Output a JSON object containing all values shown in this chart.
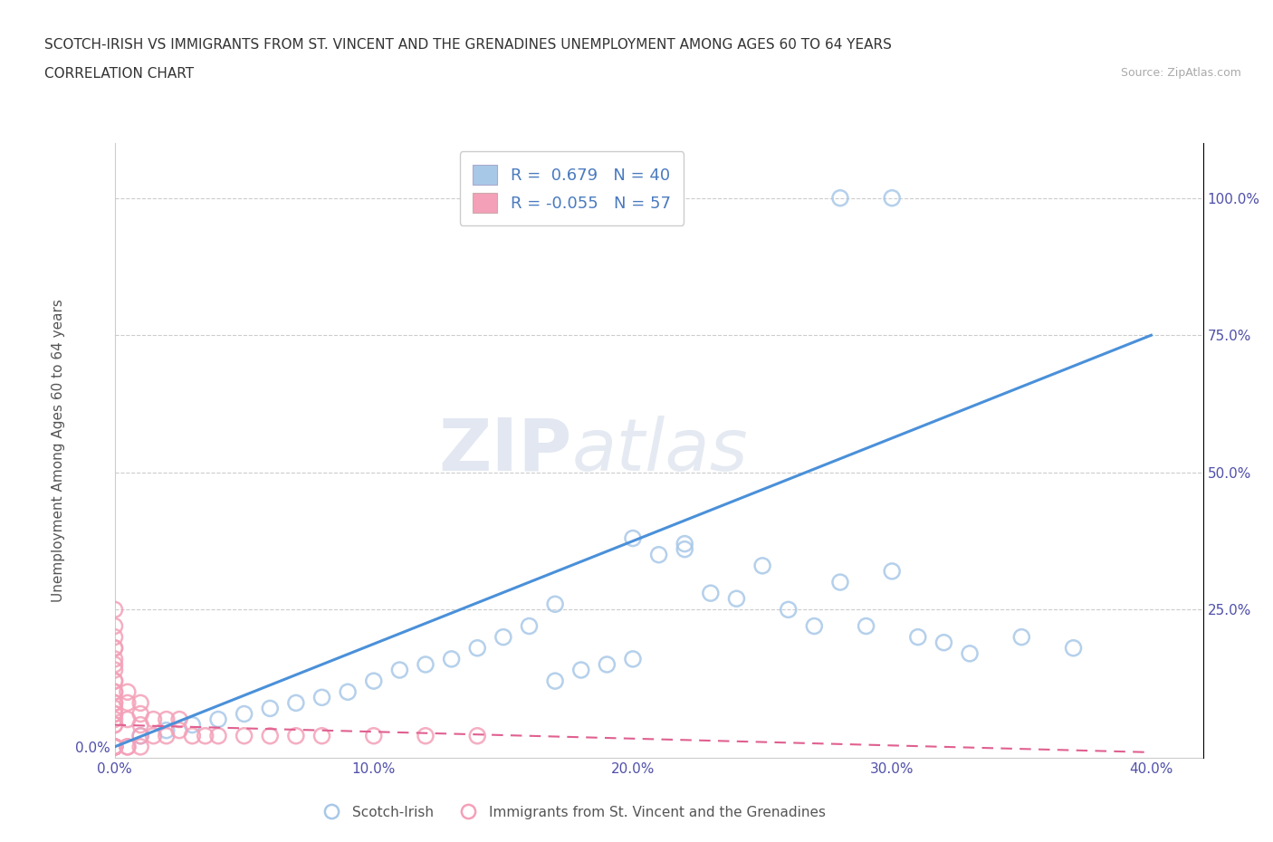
{
  "title_line1": "SCOTCH-IRISH VS IMMIGRANTS FROM ST. VINCENT AND THE GRENADINES UNEMPLOYMENT AMONG AGES 60 TO 64 YEARS",
  "title_line2": "CORRELATION CHART",
  "source_text": "Source: ZipAtlas.com",
  "ylabel": "Unemployment Among Ages 60 to 64 years",
  "xlim": [
    0.0,
    0.42
  ],
  "ylim": [
    -0.02,
    1.1
  ],
  "xtick_labels": [
    "0.0%",
    "10.0%",
    "20.0%",
    "30.0%",
    "40.0%"
  ],
  "xtick_vals": [
    0.0,
    0.1,
    0.2,
    0.3,
    0.4
  ],
  "ytick_labels_left": [
    "0.0%"
  ],
  "ytick_vals_left": [
    0.0
  ],
  "ytick_labels_right": [
    "25.0%",
    "50.0%",
    "75.0%",
    "100.0%"
  ],
  "ytick_vals_right": [
    0.25,
    0.5,
    0.75,
    1.0
  ],
  "blue_color": "#a8c8e8",
  "blue_line_color": "#4a90d9",
  "pink_color": "#f4a0b8",
  "pink_line_color": "#e06090",
  "blue_R": 0.679,
  "blue_N": 40,
  "pink_R": -0.055,
  "pink_N": 57,
  "legend_label_blue": "Scotch-Irish",
  "legend_label_pink": "Immigrants from St. Vincent and the Grenadines",
  "watermark": "ZIPatlas",
  "blue_trend_x0": 0.0,
  "blue_trend_y0": 0.0,
  "blue_trend_x1": 0.4,
  "blue_trend_y1": 0.75,
  "pink_trend_x0": 0.0,
  "pink_trend_y0": 0.04,
  "pink_trend_x1": 0.4,
  "pink_trend_y1": -0.01,
  "blue_scatter_x": [
    0.01,
    0.02,
    0.03,
    0.04,
    0.05,
    0.06,
    0.07,
    0.08,
    0.09,
    0.1,
    0.11,
    0.12,
    0.13,
    0.14,
    0.15,
    0.16,
    0.17,
    0.18,
    0.19,
    0.2,
    0.21,
    0.22,
    0.23,
    0.24,
    0.25,
    0.26,
    0.27,
    0.28,
    0.29,
    0.3,
    0.31,
    0.32,
    0.33,
    0.3,
    0.28,
    0.35,
    0.37,
    0.2,
    0.22,
    0.17
  ],
  "blue_scatter_y": [
    0.02,
    0.03,
    0.04,
    0.05,
    0.06,
    0.07,
    0.08,
    0.09,
    0.1,
    0.12,
    0.14,
    0.15,
    0.16,
    0.18,
    0.2,
    0.22,
    0.12,
    0.14,
    0.15,
    0.16,
    0.35,
    0.36,
    0.28,
    0.27,
    0.33,
    0.25,
    0.22,
    1.0,
    0.22,
    1.0,
    0.2,
    0.19,
    0.17,
    0.32,
    0.3,
    0.2,
    0.18,
    0.38,
    0.37,
    0.26
  ],
  "pink_scatter_x": [
    0.0,
    0.0,
    0.0,
    0.0,
    0.0,
    0.0,
    0.0,
    0.0,
    0.0,
    0.0,
    0.0,
    0.0,
    0.0,
    0.0,
    0.0,
    0.0,
    0.0,
    0.0,
    0.0,
    0.0,
    0.005,
    0.005,
    0.005,
    0.005,
    0.005,
    0.01,
    0.01,
    0.01,
    0.01,
    0.01,
    0.015,
    0.015,
    0.02,
    0.02,
    0.025,
    0.025,
    0.03,
    0.035,
    0.04,
    0.05,
    0.06,
    0.07,
    0.08,
    0.1,
    0.12,
    0.14,
    0.0,
    0.0,
    0.0,
    0.0,
    0.0,
    0.0,
    0.0,
    0.0,
    0.0,
    0.0,
    0.0
  ],
  "pink_scatter_y": [
    0.0,
    0.0,
    0.0,
    0.0,
    0.0,
    0.0,
    0.0,
    0.0,
    0.0,
    0.0,
    0.0,
    0.04,
    0.05,
    0.06,
    0.07,
    0.08,
    0.1,
    0.12,
    0.15,
    0.18,
    0.0,
    0.0,
    0.05,
    0.08,
    0.1,
    0.0,
    0.02,
    0.04,
    0.06,
    0.08,
    0.02,
    0.05,
    0.02,
    0.05,
    0.03,
    0.05,
    0.02,
    0.02,
    0.02,
    0.02,
    0.02,
    0.02,
    0.02,
    0.02,
    0.02,
    0.02,
    0.2,
    0.22,
    0.25,
    0.18,
    0.16,
    0.14,
    0.12,
    0.1,
    0.08,
    0.06,
    0.04
  ]
}
